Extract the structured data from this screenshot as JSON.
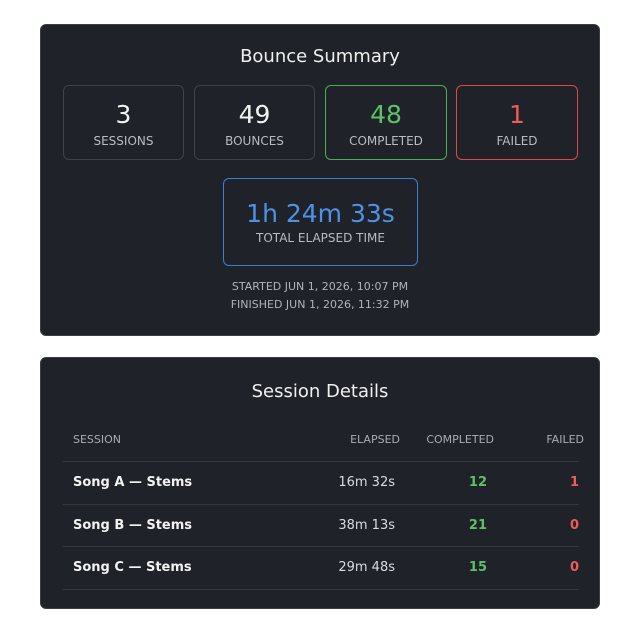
{
  "summary": {
    "title": "Bounce Summary",
    "stats": [
      {
        "value": 3,
        "label": "SESSIONS"
      },
      {
        "value": 49,
        "label": "BOUNCES"
      },
      {
        "value": 48,
        "label": "COMPLETED"
      },
      {
        "value": 1,
        "label": "FAILED"
      }
    ],
    "elapsed": {
      "value": "1h 24m 33s",
      "label": "TOTAL ELAPSED TIME"
    },
    "started": "STARTED JUN 1, 2026, 10:07 PM",
    "finished": "FINISHED JUN 1, 2026, 11:32 PM"
  },
  "details": {
    "title": "Session Details",
    "table": {
      "header": [
        "SESSION",
        "ELAPSED",
        "COMPLETED",
        "FAILED"
      ],
      "rows": [
        [
          "Song A — Stems",
          "16m 32s",
          12,
          1
        ],
        [
          "Song B — Stems",
          "38m 13s",
          21,
          0
        ],
        [
          "Song C — Stems",
          "29m 48s",
          15,
          0
        ]
      ]
    }
  }
}
